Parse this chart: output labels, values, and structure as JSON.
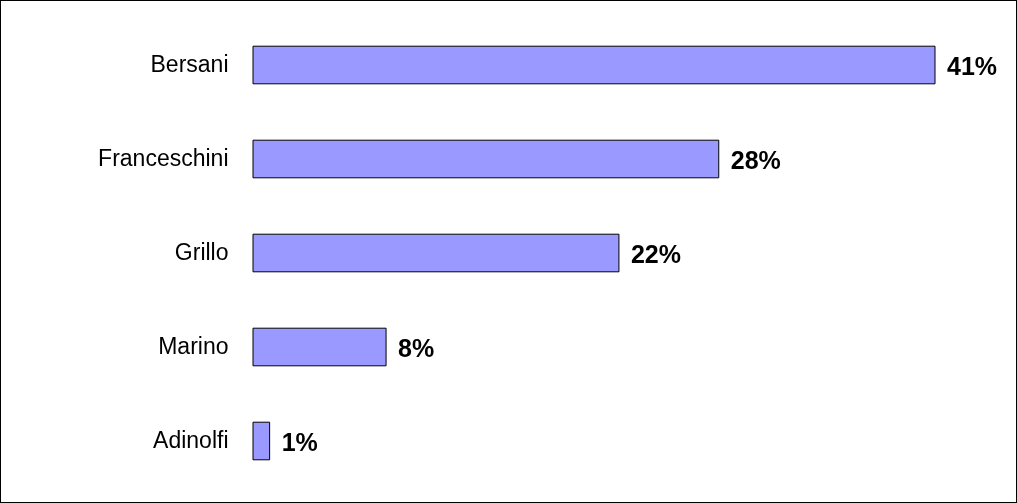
{
  "chart_data": {
    "type": "bar",
    "orientation": "horizontal",
    "categories": [
      "Bersani",
      "Franceschini",
      "Grillo",
      "Marino",
      "Adinolfi"
    ],
    "values": [
      41,
      28,
      22,
      8,
      1
    ],
    "value_labels": [
      "41%",
      "28%",
      "22%",
      "8%",
      "1%"
    ],
    "color": "#9999ff"
  }
}
